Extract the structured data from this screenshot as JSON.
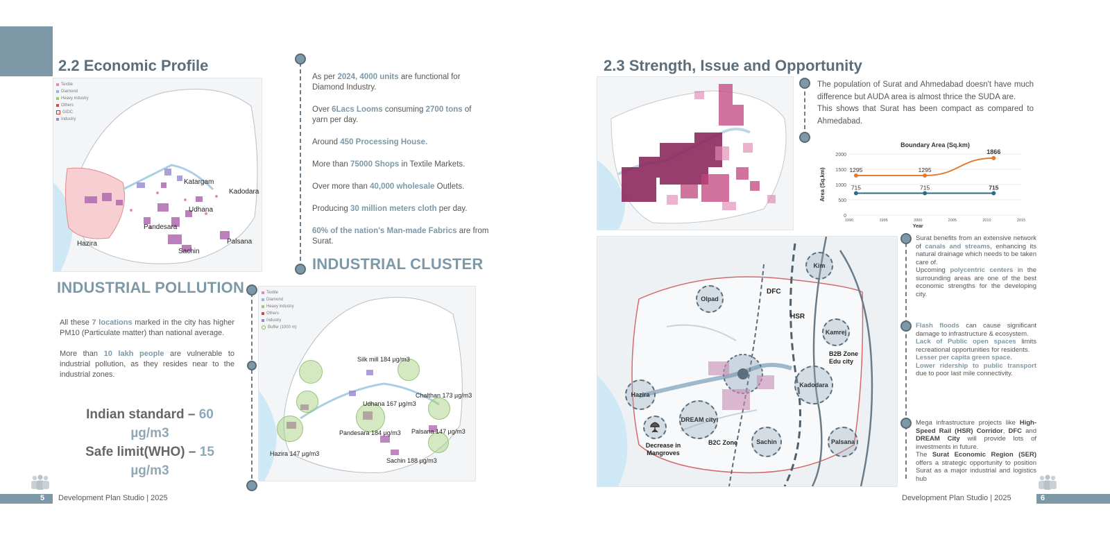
{
  "left_page": {
    "title": "2.2 Economic Profile",
    "map_legend": [
      {
        "label": "Textile",
        "color": "#e889b6"
      },
      {
        "label": "Diamond",
        "color": "#8fb9e6"
      },
      {
        "label": "Heavy industry",
        "color": "#a2c86a"
      },
      {
        "label": "Others",
        "color": "#d14848"
      },
      {
        "label": "GIDC",
        "color": "#c0392b"
      },
      {
        "label": "Industry",
        "color": "#9b86d2"
      }
    ],
    "map_labels": [
      "Katargam",
      "Kadodara",
      "Udhana",
      "Pandesara",
      "Palsana",
      "Hazira",
      "Sachin"
    ],
    "facts": [
      {
        "pre": "As per ",
        "hl": "2024, 4000 units",
        "post": " are functional for Diamond Industry."
      },
      {
        "pre": "Over ",
        "hl": "6Lacs Looms",
        "mid": " consuming ",
        "hl2": "2700 tons",
        "post": " of yarn per day."
      },
      {
        "pre": "Around ",
        "hl": "450 Processing House.",
        "post": ""
      },
      {
        "pre": "More than ",
        "hl": "75000 Shops",
        "post": " in Textile Markets."
      },
      {
        "pre": "Over more than ",
        "hl": "40,000 wholesale",
        "post": " Outlets."
      },
      {
        "pre": "Producing ",
        "hl": "30 million meters cloth",
        "post": " per day."
      },
      {
        "pre": "",
        "hl": "60% of the nation's Man-made Fabrics",
        "post": " are from Surat."
      }
    ],
    "industrial_cluster_heading": "INDUSTRIAL CLUSTER",
    "industrial_pollution_heading": "INDUSTRIAL POLLUTION",
    "pollution_para1": {
      "pre": "All these ",
      "hl": "7 locations",
      "post": " marked in the city has higher PM10 (Particulate matter) than national average."
    },
    "pollution_para2": {
      "pre": "More than ",
      "hl": "10 lakh people",
      "post": " are vulnerable to industrial pollution, as they resides near to the industrial zones."
    },
    "indian_standard": {
      "label": "Indian standard  – ",
      "value": "60 µg/m3"
    },
    "safe_limit": {
      "label": "Safe limit(WHO) – ",
      "value": "15 µg/m3"
    },
    "cluster_legend": [
      {
        "label": "Textile",
        "color": "#e889b6"
      },
      {
        "label": "Diamond",
        "color": "#8fb9e6"
      },
      {
        "label": "Heavy industry",
        "color": "#a2c86a"
      },
      {
        "label": "Others",
        "color": "#d14848"
      },
      {
        "label": "Industry",
        "color": "#9b86d2"
      },
      {
        "label": "Buffer (1000 m)",
        "color": "#7fb35c"
      }
    ],
    "cluster_labels": [
      "Silk mill 184 µg/m3",
      "Chalthan 173 µg/m3",
      "Udhana 167 µg/m3",
      "Pandesara 184 µg/m3",
      "Palsana 147 µg/m3",
      "Hazira 147 µg/m3",
      "Sachin 188 µg/m3"
    ],
    "footer_num": "5",
    "footer_text": "Development Plan Studio | 2025"
  },
  "right_page": {
    "title": "2.3 Strength, Issue and Opportunity",
    "intro": "The population of Surat and Ahmedabad doesn't have much difference but AUDA area is almost thrice the SUDA are.",
    "intro2": "This shows that Surat has been compact as compared to Ahmedabad.",
    "chart_data": {
      "type": "line",
      "title": "Boundary Area (Sq.km)",
      "xlabel": "Year",
      "ylabel": "Area (Sq.km)",
      "xlim": [
        1990,
        2015
      ],
      "ylim": [
        0,
        2000
      ],
      "x_ticks": [
        1990,
        1995,
        2000,
        2005,
        2010,
        2015
      ],
      "y_ticks": [
        0,
        500,
        1000,
        1500,
        2000
      ],
      "series": [
        {
          "color": "#e27b33",
          "x": [
            1991,
            2001,
            2011
          ],
          "values": [
            1295,
            1295,
            1866
          ],
          "labels": [
            "1295",
            "1295",
            "1866"
          ]
        },
        {
          "color": "#2f6a86",
          "x": [
            1991,
            2001,
            2011
          ],
          "values": [
            715,
            715,
            715
          ],
          "labels": [
            "715",
            "715",
            "715"
          ]
        }
      ]
    },
    "points": [
      {
        "pre": "Surat benefits from an extensive network of ",
        "hl": "canals and streams",
        "post": ", enhancing its natural drainage which needs to be taken care of.",
        "pre2": "Upcoming ",
        "hl2": "polycentric centers",
        "post2": " in the surrounding areas are one of the best economic strengths for the developing city."
      },
      {
        "hl": "Flash floods",
        "post": " can cause significant damage to infrastructure & ecosystem.",
        "hl2": "Lack of Public open spaces",
        "post2": " limits recreational opportunities for residents.",
        "hl3": "Lesser per capita green space.",
        "hl4": "Lower ridership to public transport",
        "post4": " due to poor last mile connectivity."
      },
      {
        "pre": "Mega infrastructure projects like ",
        "hl": "High-Speed Rail (HSR) Corridor",
        "mid": ", ",
        "hl2": "DFC",
        "mid2": " and ",
        "hl3": "DREAM City",
        "post": " will provide lots of investments in future.",
        "pre2": "The ",
        "hl4": "Surat Economic Region (SER)",
        "post2": " offers a strategic opportunity to position Surat as a major industrial and logistics hub"
      }
    ],
    "zones": {
      "kim": "Kim",
      "olpad": "Olpad",
      "kamrej": "Kamrej",
      "kadodara": "Kadodara",
      "hazira": "Hazira",
      "dream": "DREAM city",
      "sachin": "Sachin",
      "palsana": "Palsana"
    },
    "map_text": {
      "dfc": "DFC",
      "hsr": "HSR",
      "b2b": "B2B Zone Edu city",
      "b2c": "B2C Zone",
      "mangroves": "Decrease in Mangroves"
    },
    "footer_num": "6",
    "footer_text": "Development Plan Studio | 2025"
  }
}
